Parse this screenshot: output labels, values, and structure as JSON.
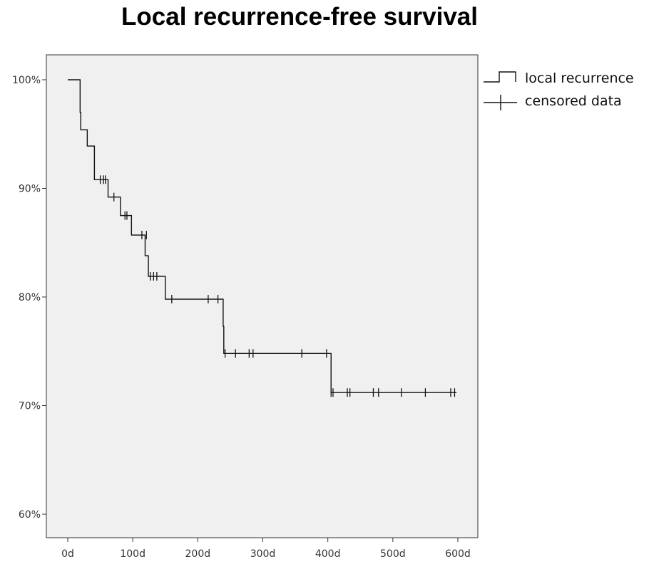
{
  "chart_data": {
    "type": "line",
    "title": "Local recurrence-free survival",
    "xlabel": "",
    "ylabel": "",
    "xlim": [
      0,
      600
    ],
    "ylim": [
      60,
      100
    ],
    "x_ticks": [
      {
        "value": 0,
        "label": "0d"
      },
      {
        "value": 100,
        "label": "100d"
      },
      {
        "value": 200,
        "label": "200d"
      },
      {
        "value": 300,
        "label": "300d"
      },
      {
        "value": 400,
        "label": "400d"
      },
      {
        "value": 500,
        "label": "500d"
      },
      {
        "value": 600,
        "label": "600d"
      }
    ],
    "y_ticks": [
      {
        "value": 60,
        "label": "60%"
      },
      {
        "value": 70,
        "label": "70%"
      },
      {
        "value": 80,
        "label": "80%"
      },
      {
        "value": 90,
        "label": "90%"
      },
      {
        "value": 100,
        "label": "100%"
      }
    ],
    "grid": false,
    "legend_position": "outside-top-right",
    "legend": [
      {
        "label": "local recurrence",
        "marker": "step"
      },
      {
        "label": "censored data",
        "marker": "cross"
      }
    ],
    "series": [
      {
        "name": "local recurrence",
        "step_points": [
          {
            "x": 0,
            "y": 100.0
          },
          {
            "x": 19,
            "y": 97.0
          },
          {
            "x": 20,
            "y": 95.4
          },
          {
            "x": 30,
            "y": 93.9
          },
          {
            "x": 41,
            "y": 90.8
          },
          {
            "x": 62,
            "y": 89.2
          },
          {
            "x": 81,
            "y": 87.5
          },
          {
            "x": 98,
            "y": 85.7
          },
          {
            "x": 119,
            "y": 83.8
          },
          {
            "x": 124,
            "y": 81.9
          },
          {
            "x": 150,
            "y": 79.8
          },
          {
            "x": 239,
            "y": 77.3
          },
          {
            "x": 240,
            "y": 74.8
          },
          {
            "x": 405,
            "y": 71.2
          },
          {
            "x": 598,
            "y": 71.2
          }
        ],
        "censored": [
          {
            "x": 50,
            "y": 90.8
          },
          {
            "x": 55,
            "y": 90.8
          },
          {
            "x": 58,
            "y": 90.8
          },
          {
            "x": 71,
            "y": 89.2
          },
          {
            "x": 88,
            "y": 87.5
          },
          {
            "x": 91,
            "y": 87.5
          },
          {
            "x": 114,
            "y": 85.7
          },
          {
            "x": 121,
            "y": 85.7
          },
          {
            "x": 127,
            "y": 81.9
          },
          {
            "x": 132,
            "y": 81.9
          },
          {
            "x": 137,
            "y": 81.9
          },
          {
            "x": 160,
            "y": 79.8
          },
          {
            "x": 216,
            "y": 79.8
          },
          {
            "x": 231,
            "y": 79.8
          },
          {
            "x": 242,
            "y": 74.8
          },
          {
            "x": 258,
            "y": 74.8
          },
          {
            "x": 279,
            "y": 74.8
          },
          {
            "x": 285,
            "y": 74.8
          },
          {
            "x": 360,
            "y": 74.8
          },
          {
            "x": 398,
            "y": 74.8
          },
          {
            "x": 405,
            "y": 71.2
          },
          {
            "x": 408,
            "y": 71.2
          },
          {
            "x": 430,
            "y": 71.2
          },
          {
            "x": 434,
            "y": 71.2
          },
          {
            "x": 470,
            "y": 71.2
          },
          {
            "x": 478,
            "y": 71.2
          },
          {
            "x": 513,
            "y": 71.2
          },
          {
            "x": 550,
            "y": 71.2
          },
          {
            "x": 589,
            "y": 71.2
          },
          {
            "x": 595,
            "y": 71.2
          }
        ]
      }
    ]
  }
}
